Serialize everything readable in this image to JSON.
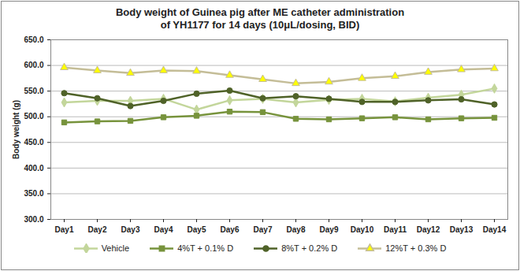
{
  "chart_data": {
    "type": "line",
    "title": "Body weight of Guinea pig after ME catheter administration\nof YH1177 for 14 days (10μL/dosing, BID)",
    "y_label": "Body weight (g)",
    "categories": [
      "Day1",
      "Day2",
      "Day3",
      "Day4",
      "Day5",
      "Day6",
      "Day7",
      "Day8",
      "Day9",
      "Day10",
      "Day11",
      "Day12",
      "Day13",
      "Day14"
    ],
    "series": [
      {
        "name": "Vehicle",
        "color": "#c3d69b",
        "marker": "diamond",
        "values": [
          528,
          531,
          531,
          535,
          514,
          532,
          535,
          528,
          533,
          535,
          530,
          537,
          543,
          555
        ]
      },
      {
        "name": "4%T + 0.1% D",
        "color": "#77933c",
        "marker": "square",
        "values": [
          489,
          491,
          492,
          499,
          502,
          510,
          509,
          496,
          495,
          497,
          499,
          495,
          497,
          498
        ]
      },
      {
        "name": "8%T + 0.2% D",
        "color": "#4f6228",
        "marker": "circle",
        "values": [
          546,
          536,
          521,
          531,
          545,
          551,
          536,
          540,
          535,
          529,
          529,
          532,
          534,
          524
        ]
      },
      {
        "name": "12%T + 0.3% D",
        "color": "#c4bd97",
        "marker": "triangle",
        "values": [
          596,
          590,
          585,
          590,
          589,
          581,
          573,
          565,
          568,
          575,
          579,
          587,
          592,
          594
        ]
      }
    ],
    "ylim": [
      300,
      650
    ],
    "yticks": [
      {
        "value": 300,
        "label": "300.0"
      },
      {
        "value": 350,
        "label": "350.0"
      },
      {
        "value": 400,
        "label": "400.0"
      },
      {
        "value": 450,
        "label": "450.0"
      },
      {
        "value": 500,
        "label": "500.0"
      },
      {
        "value": 550,
        "label": "550.0"
      },
      {
        "value": 600,
        "label": "600.0"
      },
      {
        "value": 650,
        "label": "650.0"
      }
    ],
    "grid": true,
    "legend": "bottom"
  }
}
